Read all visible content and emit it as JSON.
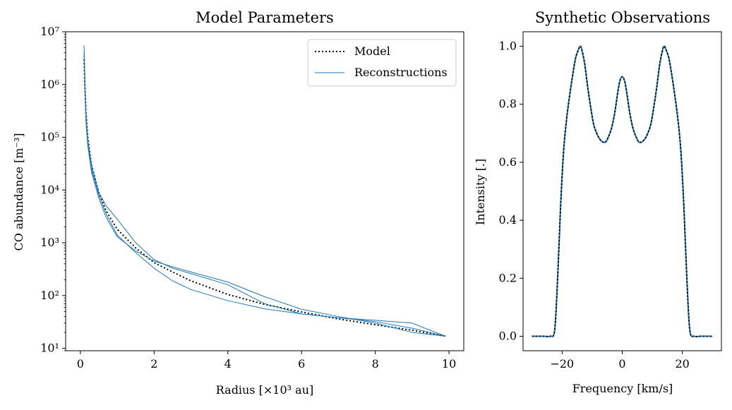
{
  "chart_data": [
    {
      "type": "line",
      "title": "Model Parameters",
      "xlabel": "Radius [×10³ au]",
      "ylabel": "CO abundance [m⁻³]",
      "xlim": [
        -0.4,
        10.4
      ],
      "ylim": [
        9,
        10000000
      ],
      "yscale": "log",
      "xticks": [
        "0",
        "2",
        "4",
        "6",
        "8",
        "10"
      ],
      "xtick_values": [
        0,
        2,
        4,
        6,
        8,
        10
      ],
      "yticks": [
        "10¹",
        "10²",
        "10³",
        "10⁴",
        "10⁵",
        "10⁶",
        "10⁷"
      ],
      "ytick_values": [
        10,
        100,
        1000,
        10000,
        100000,
        1000000,
        10000000
      ],
      "legend": {
        "placement": "top-right",
        "entries": [
          "Model",
          "Reconstructions"
        ]
      },
      "series": [
        {
          "name": "Model",
          "style": "dotted",
          "color": "#000000",
          "x": [
            0.1,
            0.12,
            0.15,
            0.2,
            0.3,
            0.5,
            0.7,
            1.0,
            1.5,
            2.0,
            2.5,
            3.0,
            4.0,
            5.0,
            6.0,
            7.0,
            8.0,
            9.0,
            9.9
          ],
          "y": [
            3000000,
            1000000,
            300000,
            100000,
            30000,
            9000,
            4000,
            1800,
            800,
            420,
            280,
            190,
            105,
            68,
            49,
            36,
            28,
            22,
            17
          ]
        },
        {
          "name": "Reconstructions",
          "style": "solid",
          "color": "#1f77b4",
          "x": [
            0.1,
            0.12,
            0.15,
            0.2,
            0.3,
            0.5,
            0.7,
            1.0,
            1.5,
            2.0,
            2.5,
            3.0,
            4.0,
            5.0,
            6.0,
            7.0,
            8.0,
            9.0,
            9.9
          ],
          "y": [
            5500000,
            1500000,
            300000,
            90000,
            30000,
            9000,
            5000,
            2800,
            1000,
            480,
            330,
            260,
            160,
            70,
            45,
            38,
            34,
            30,
            17
          ]
        },
        {
          "name": "",
          "style": "solid",
          "color": "#1f77b4",
          "x": [
            0.1,
            0.12,
            0.15,
            0.2,
            0.3,
            0.5,
            0.7,
            1.0,
            1.5,
            2.0,
            2.5,
            3.0,
            4.0,
            5.0,
            6.0,
            7.0,
            8.0,
            9.0,
            9.9
          ],
          "y": [
            4000000,
            1200000,
            250000,
            80000,
            25000,
            8000,
            3500,
            1400,
            650,
            330,
            190,
            130,
            80,
            56,
            45,
            38,
            32,
            24,
            17
          ]
        },
        {
          "name": "",
          "style": "solid",
          "color": "#1f77b4",
          "x": [
            0.1,
            0.12,
            0.15,
            0.2,
            0.3,
            0.5,
            0.7,
            1.0,
            1.5,
            2.0,
            2.5,
            3.0,
            4.0,
            5.0,
            6.0,
            7.0,
            8.0,
            9.0,
            9.9
          ],
          "y": [
            3500000,
            1100000,
            200000,
            70000,
            22000,
            7000,
            3000,
            1300,
            700,
            450,
            350,
            280,
            180,
            95,
            55,
            40,
            30,
            20,
            17
          ]
        }
      ]
    },
    {
      "type": "line",
      "title": "Synthetic Observations",
      "xlabel": "Frequency [km/s]",
      "ylabel": "Intensity [.]",
      "xlim": [
        -33,
        33
      ],
      "ylim": [
        -0.05,
        1.05
      ],
      "xticks": [
        "−20",
        "0",
        "20"
      ],
      "xtick_values": [
        -20,
        0,
        20
      ],
      "yticks": [
        "0.0",
        "0.2",
        "0.4",
        "0.6",
        "0.8",
        "1.0"
      ],
      "ytick_values": [
        0,
        0.2,
        0.4,
        0.6,
        0.8,
        1.0
      ],
      "series": [
        {
          "name": "",
          "style": "solid",
          "color": "#1f77b4",
          "x": [
            -30,
            -28,
            -26,
            -24,
            -22.5,
            -21.5,
            -20.5,
            -19.5,
            -18.5,
            -17.5,
            -16.5,
            -15.5,
            -14.5,
            -14,
            -13.5,
            -12.5,
            -11.5,
            -10.5,
            -9.5,
            -8.5,
            -7.5,
            -6.5,
            -5.5,
            -4.5,
            -3.5,
            -2.5,
            -1.5,
            -0.8,
            0,
            0.8,
            1.5,
            2.5,
            3.5,
            4.5,
            5.5,
            6.5,
            7.5,
            8.5,
            9.5,
            10.5,
            11.5,
            12.5,
            13.5,
            14,
            14.5,
            15.5,
            16.5,
            17.5,
            18.5,
            19.5,
            20.5,
            21.5,
            22.5,
            24,
            26,
            28,
            30
          ],
          "y": [
            0.0,
            0.0,
            0.0,
            0.0,
            0.02,
            0.2,
            0.45,
            0.64,
            0.75,
            0.83,
            0.9,
            0.96,
            0.99,
            1.0,
            0.99,
            0.94,
            0.86,
            0.79,
            0.73,
            0.7,
            0.68,
            0.67,
            0.67,
            0.69,
            0.72,
            0.77,
            0.84,
            0.88,
            0.895,
            0.88,
            0.84,
            0.77,
            0.72,
            0.69,
            0.67,
            0.67,
            0.68,
            0.7,
            0.73,
            0.79,
            0.86,
            0.94,
            0.99,
            1.0,
            0.99,
            0.96,
            0.9,
            0.83,
            0.75,
            0.64,
            0.45,
            0.2,
            0.02,
            0.0,
            0.0,
            0.0,
            0.0
          ]
        },
        {
          "name": "",
          "style": "dotted",
          "color": "#000000",
          "x": [
            -30,
            -28,
            -26,
            -24,
            -22.5,
            -21.5,
            -20.5,
            -19.5,
            -18.5,
            -17.5,
            -16.5,
            -15.5,
            -14.5,
            -14,
            -13.5,
            -12.5,
            -11.5,
            -10.5,
            -9.5,
            -8.5,
            -7.5,
            -6.5,
            -5.5,
            -4.5,
            -3.5,
            -2.5,
            -1.5,
            -0.8,
            0,
            0.8,
            1.5,
            2.5,
            3.5,
            4.5,
            5.5,
            6.5,
            7.5,
            8.5,
            9.5,
            10.5,
            11.5,
            12.5,
            13.5,
            14,
            14.5,
            15.5,
            16.5,
            17.5,
            18.5,
            19.5,
            20.5,
            21.5,
            22.5,
            24,
            26,
            28,
            30
          ],
          "y": [
            0.0,
            0.0,
            0.0,
            0.0,
            0.02,
            0.2,
            0.45,
            0.64,
            0.75,
            0.83,
            0.9,
            0.96,
            0.99,
            1.0,
            0.99,
            0.94,
            0.86,
            0.79,
            0.73,
            0.7,
            0.68,
            0.67,
            0.67,
            0.69,
            0.72,
            0.77,
            0.84,
            0.88,
            0.895,
            0.88,
            0.84,
            0.77,
            0.72,
            0.69,
            0.67,
            0.67,
            0.68,
            0.7,
            0.73,
            0.79,
            0.86,
            0.94,
            0.99,
            1.0,
            0.99,
            0.96,
            0.9,
            0.83,
            0.75,
            0.64,
            0.45,
            0.2,
            0.02,
            0.0,
            0.0,
            0.0,
            0.0
          ]
        }
      ]
    }
  ]
}
